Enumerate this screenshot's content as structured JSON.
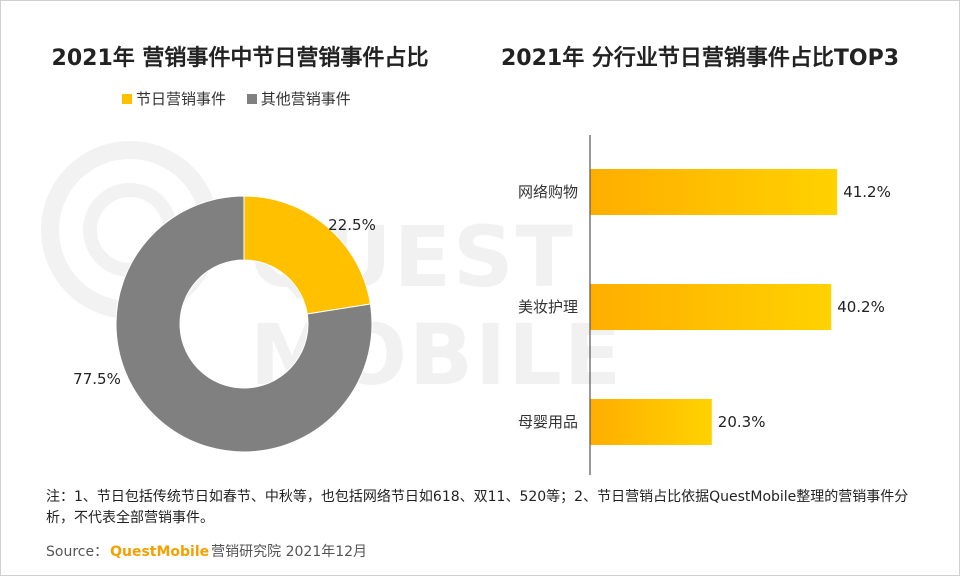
{
  "left_title": "2021年 营销事件中节日营销事件占比",
  "right_title": "2021年 分行业节日营销事件占比TOP3",
  "note": "注：1、节日包括传统节日如春节、中秋等，也包括网络节日如618、双11、520等；2、节日营销占比依据QuestMobile整理的营销事件分析，不代表全部营销事件。",
  "source": {
    "prefix": "Source：",
    "brand": "QuestMobile",
    "suffix": "营销研究院 2021年12月"
  },
  "watermark": "QUEST MOBILE",
  "colors": {
    "accent": "#FFC000",
    "grey": "#808080",
    "brand": "#F5A000"
  },
  "chart_data": [
    {
      "type": "pie",
      "title": "2021年 营销事件中节日营销事件占比",
      "legend_position": "top",
      "slices": [
        {
          "name": "节日营销事件",
          "value": 22.5,
          "label": "22.5%",
          "color": "#FFC000"
        },
        {
          "name": "其他营销事件",
          "value": 77.5,
          "label": "77.5%",
          "color": "#808080"
        }
      ]
    },
    {
      "type": "bar",
      "orientation": "horizontal",
      "title": "2021年 分行业节日营销事件占比TOP3",
      "categories": [
        "网络购物",
        "美妆护理",
        "母婴用品"
      ],
      "values": [
        41.2,
        40.2,
        20.3
      ],
      "labels": [
        "41.2%",
        "40.2%",
        "20.3%"
      ],
      "xlim": [
        0,
        45
      ]
    }
  ]
}
